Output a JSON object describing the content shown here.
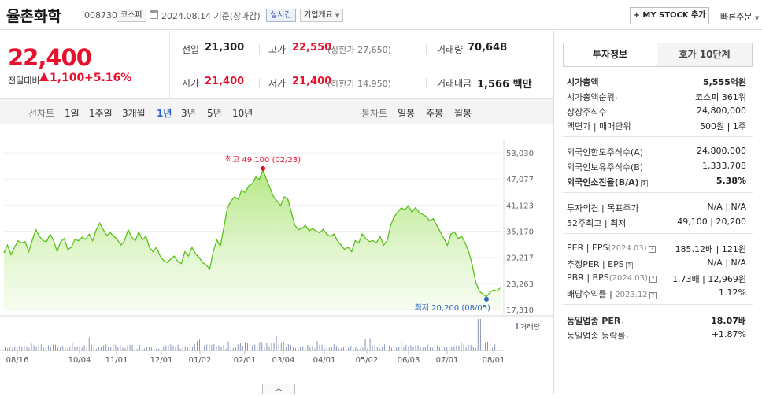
{
  "header": {
    "name": "율촌화학",
    "code": "008730",
    "market": "코스피",
    "date": "2024.08.14",
    "basis": "기준(장마감)",
    "realtime": "실시간",
    "company_info": "기업개요",
    "mystock": "+ MY STOCK 추가",
    "quick_order": "빠른주문"
  },
  "price": {
    "current": "22,400",
    "diff_label": "전일대비",
    "diff": "1,100",
    "diff_pct": "+5.16%",
    "prev_label": "전일",
    "prev": "21,300",
    "high_label": "고가",
    "high": "22,550",
    "upper_limit": "(상한가 27,650)",
    "volume_label": "거래량",
    "volume": "70,648",
    "open_label": "시가",
    "open": "21,400",
    "low_label": "저가",
    "low": "21,400",
    "lower_limit": "(하한가 14,950)",
    "amount_label": "거래대금",
    "amount": "1,566",
    "amount_unit": "백만"
  },
  "tabs": {
    "line_label": "선차트",
    "line_tabs": [
      "1일",
      "1주일",
      "3개월",
      "1년",
      "3년",
      "5년",
      "10년"
    ],
    "active": "1년",
    "candle_label": "봉차트",
    "candle_tabs": [
      "일봉",
      "주봉",
      "월봉"
    ]
  },
  "chart_data": {
    "type": "area",
    "x_tick_labels": [
      "08/16",
      "10/04",
      "11/01",
      "12/01",
      "01/02",
      "02/01",
      "03/04",
      "04/01",
      "05/02",
      "06/03",
      "07/01",
      "08/01"
    ],
    "y_tick_labels": [
      "53,030",
      "47,077",
      "41,123",
      "35,170",
      "29,217",
      "23,263",
      "17,310"
    ],
    "ylim": [
      17310,
      53030
    ],
    "high_annotation": "최고 49,100 (02/23)",
    "low_annotation": "최저 20,200 (08/05)",
    "volume_legend": "거래량",
    "series": [
      {
        "values": [
          30200,
          32000,
          29800,
          31500,
          33000,
          32500,
          32800,
          30500,
          33200,
          35500,
          34000,
          33000,
          32800,
          34500,
          33000,
          30500,
          32800,
          33500,
          31000,
          31500,
          33300,
          33000,
          33800,
          33300,
          34500,
          33000,
          35500,
          37000,
          35500,
          34200,
          34800,
          34000,
          33200,
          32000,
          33000,
          35500,
          33800,
          33000,
          35000,
          33200,
          34000,
          31500,
          30500,
          31500,
          29500,
          28500,
          28000,
          28800,
          29500,
          28300,
          27800,
          30500,
          29500,
          31500,
          30000,
          29200,
          28000,
          27500,
          26500,
          30500,
          33200,
          31800,
          36000,
          40500,
          42000,
          43000,
          42500,
          44500,
          44000,
          45500,
          46000,
          47500,
          47000,
          49100,
          47000,
          45000,
          43000,
          42000,
          41000,
          43000,
          42500,
          39500,
          36500,
          35500,
          35800,
          36500,
          35200,
          35800,
          35200,
          34800,
          35600,
          34500,
          34000,
          34500,
          33000,
          32000,
          31000,
          31500,
          30500,
          33000,
          32500,
          34500,
          33500,
          32800,
          33000,
          32500,
          34000,
          32000,
          33000,
          36500,
          38500,
          39500,
          40500,
          40000,
          41000,
          39500,
          40500,
          39500,
          39000,
          38500,
          37500,
          38000,
          36500,
          35000,
          33500,
          32000,
          34500,
          35000,
          33500,
          34000,
          32500,
          30500,
          27500,
          23500,
          21500,
          20800,
          20200,
          21200,
          21800,
          21500,
          22400
        ],
        "color": "#58c11a"
      }
    ]
  },
  "right_panel": {
    "tab_invest": "투자정보",
    "tab_orderbook": "호가 10단계",
    "market_cap_label": "시가총액",
    "market_cap": "5,555억원",
    "cap_rank_label": "시가총액순위",
    "cap_rank": "코스피 361위",
    "shares_label": "상장주식수",
    "shares": "24,800,000",
    "par_label": "액면가",
    "unit_label": "매매단위",
    "par": "500원",
    "unit": "1주",
    "foreign_limit_label": "외국인한도주식수(A)",
    "foreign_limit": "24,800,000",
    "foreign_hold_label": "외국인보유주식수(B)",
    "foreign_hold": "1,333,708",
    "foreign_ratio_label": "외국인소진율(B/A)",
    "foreign_ratio": "5.38%",
    "opinion_label": "투자의견",
    "target_label": "목표주가",
    "opinion": "N/A",
    "target": "N/A",
    "w52_high_label": "52주최고",
    "w52_low_label": "최저",
    "w52_high": "49,100",
    "w52_low": "20,200",
    "per_label": "PER",
    "eps_label": "EPS",
    "per_period": "(2024.03)",
    "per": "185.12배",
    "eps": "121원",
    "est_per_label": "추정PER",
    "est_eps_label": "EPS",
    "est_per": "N/A",
    "est_eps": "N/A",
    "pbr_label": "PBR",
    "bps_label": "BPS",
    "pbr_period": "(2024.03)",
    "pbr": "1.73배",
    "bps": "12,969원",
    "div_label": "배당수익률",
    "div_period": "2023.12",
    "div": "1.12%",
    "ind_per_label": "동일업종 PER",
    "ind_per": "18.07배",
    "ind_rate_label": "동일업종 등락률",
    "ind_rate": "+1.87%"
  }
}
